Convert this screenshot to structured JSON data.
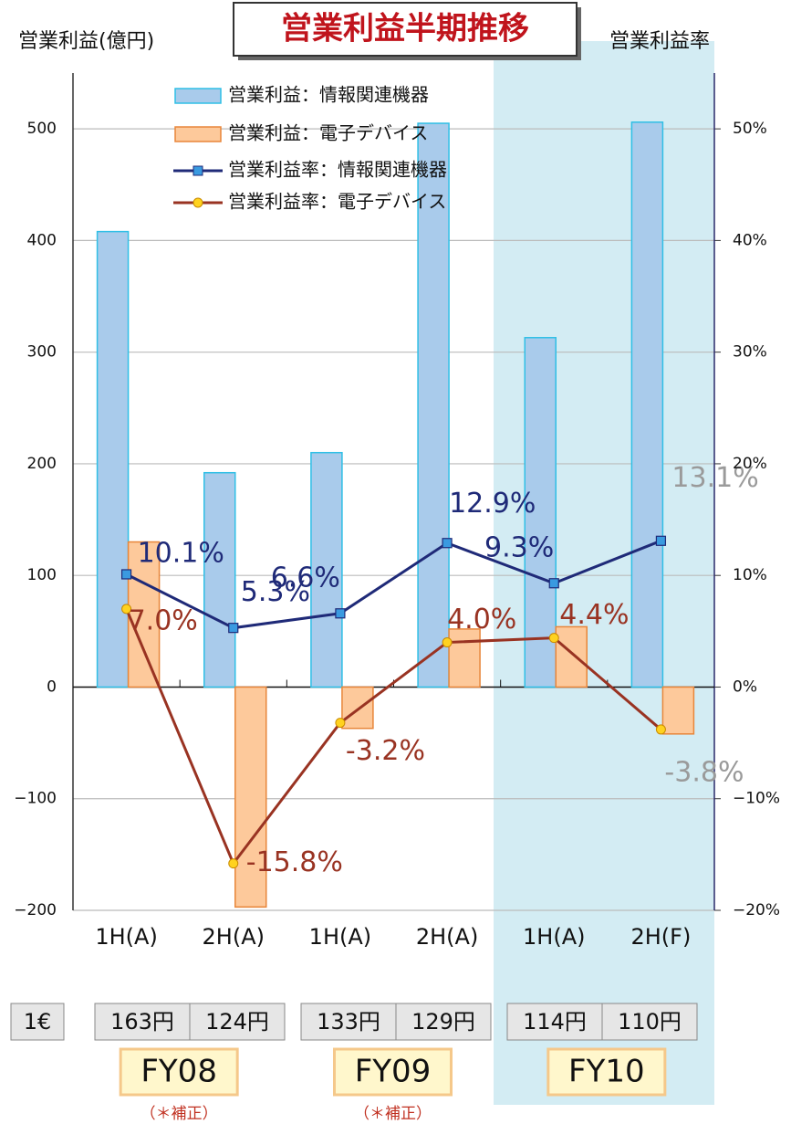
{
  "chart_data": {
    "type": "bar-line",
    "title": "営業利益半期推移",
    "y_label": "営業利益(億円)",
    "y2_label": "営業利益率",
    "categories": [
      "1H(A)",
      "2H(A)",
      "1H(A)",
      "2H(A)",
      "1H(A)",
      "2H(F)"
    ],
    "series": [
      {
        "name": "営業利益：情報関連機器",
        "kind": "bar",
        "color": "#a9cbeb",
        "edge": "#2fbfe6",
        "values": [
          408,
          192,
          210,
          505,
          313,
          506
        ]
      },
      {
        "name": "営業利益：電子デバイス",
        "kind": "bar",
        "color": "#fdc99b",
        "edge": "#e8863a",
        "values": [
          130,
          -197,
          -37,
          52,
          54,
          -42
        ]
      },
      {
        "name": "営業利益率：情報関連機器",
        "kind": "line",
        "axis": "y2",
        "color": "#1f2a78",
        "marker_color": "#3a9ae0",
        "marker": "square",
        "values": [
          10.1,
          5.3,
          6.6,
          12.9,
          9.3,
          13.1
        ],
        "value_labels": [
          "10.1%",
          "5.3%",
          "6.6%",
          "12.9%",
          "9.3%",
          "13.1%"
        ]
      },
      {
        "name": "営業利益率：電子デバイス",
        "kind": "line",
        "axis": "y2",
        "color": "#993322",
        "marker_color": "#ffd21f",
        "marker": "circle",
        "values": [
          7.0,
          -15.8,
          -3.2,
          4.0,
          4.4,
          -3.8
        ],
        "value_labels": [
          "7.0%",
          "-15.8%",
          "-3.2%",
          "4.0%",
          "4.4%",
          "-3.8%"
        ]
      }
    ],
    "ylim": [
      -200,
      550
    ],
    "yticks": [
      {
        "value": -200,
        "label": "−200"
      },
      {
        "value": -100,
        "label": "−100"
      },
      0,
      100,
      200,
      300,
      400,
      500
    ],
    "y2lim": [
      -20,
      55
    ],
    "y2ticks": [
      {
        "value": -20,
        "label": "−20%"
      },
      {
        "value": -10,
        "label": "−10%"
      },
      {
        "value": 0,
        "label": "0%"
      },
      {
        "value": 10,
        "label": "10%"
      },
      {
        "value": 20,
        "label": "20%"
      },
      {
        "value": 30,
        "label": "30%"
      },
      {
        "value": 40,
        "label": "40%"
      },
      {
        "value": 50,
        "label": "50%"
      }
    ],
    "grid": true,
    "rate_row": {
      "label": "1€",
      "values": [
        "163円",
        "124円",
        "133円",
        "129円",
        "114円",
        "110円"
      ]
    },
    "fiscal_years": [
      {
        "label": "FY08",
        "note": "（＊補正）"
      },
      {
        "label": "FY09",
        "note": "（＊補正）"
      },
      {
        "label": "FY10"
      }
    ]
  }
}
